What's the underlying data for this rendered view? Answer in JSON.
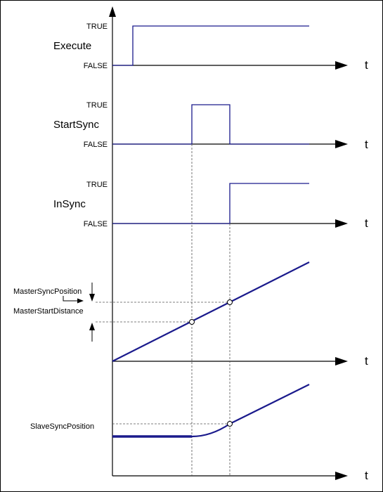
{
  "time_axis_label": "t",
  "signals": [
    {
      "name": "Execute",
      "true_label": "TRUE",
      "false_label": "FALSE"
    },
    {
      "name": "StartSync",
      "true_label": "TRUE",
      "false_label": "FALSE"
    },
    {
      "name": "InSync",
      "true_label": "TRUE",
      "false_label": "FALSE"
    }
  ],
  "master_sync_position_label": "MasterSyncPosition",
  "master_start_distance_label": "MasterStartDistance",
  "slave_sync_position_label": "SlaveSyncPosition",
  "colors": {
    "signal": "#1a1a8c",
    "axis": "#000000",
    "dashed": "#555555"
  }
}
